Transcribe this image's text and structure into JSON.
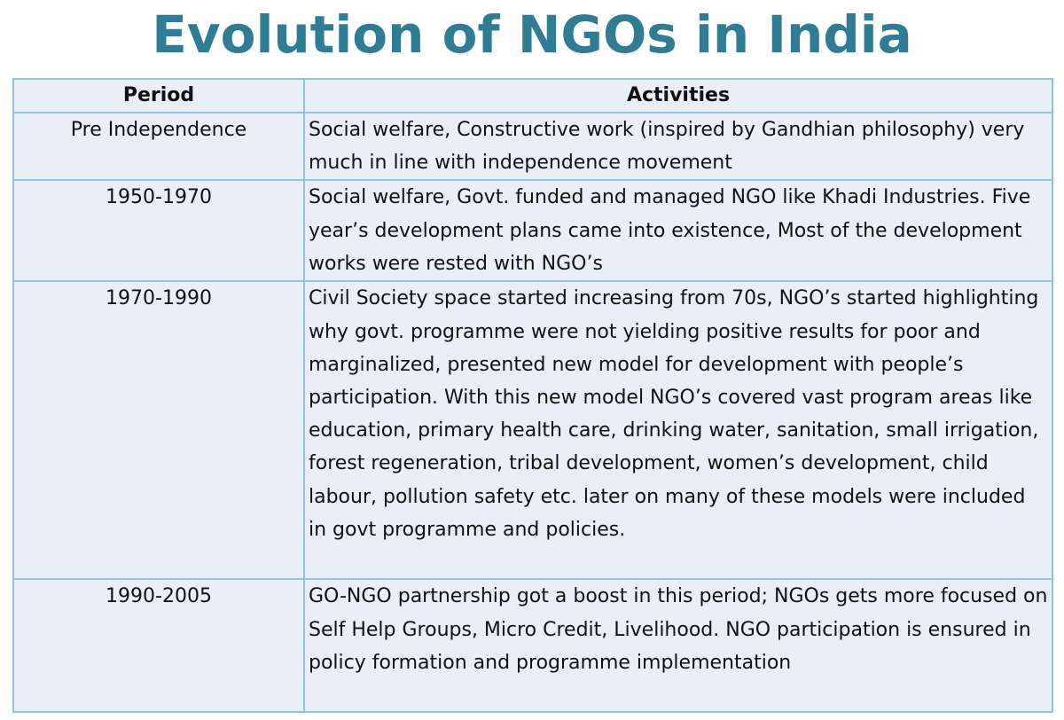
{
  "title": "Evolution of NGOs in India",
  "table": {
    "headers": [
      "Period",
      "Activities"
    ],
    "rows": [
      {
        "period": "Pre Independence",
        "activities": "Social welfare, Constructive work (inspired by Gandhian philosophy) very much in line with independence movement"
      },
      {
        "period": "1950-1970",
        "activities": "Social welfare, Govt. funded and managed NGO like Khadi Industries. Five year’s development plans came into existence, Most of the development works were rested with NGO’s"
      },
      {
        "period": "1970-1990",
        "activities": "Civil Society space started increasing from 70s, NGO’s started highlighting why govt. programme were not yielding positive results for poor and marginalized, presented new model for development with people’s participation. With this new model NGO’s covered vast program areas like education, primary health care, drinking water, sanitation, small irrigation, forest regeneration, tribal development, women’s development, child labour, pollution safety etc. later on many of these models were included in govt programme and policies."
      },
      {
        "period": "1990-2005",
        "activities": "GO-NGO partnership got a boost in this period; NGOs gets more focused on Self Help Groups, Micro Credit, Livelihood. NGO participation is ensured in policy formation and programme implementation"
      }
    ]
  },
  "colors": {
    "title": "#2f7d95",
    "cell_background": "#e9eef7",
    "border": "#8fc3d8",
    "text": "#111111"
  }
}
